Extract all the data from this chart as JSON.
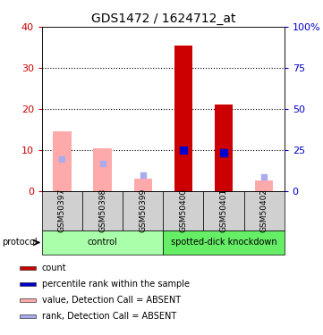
{
  "title": "GDS1472 / 1624712_at",
  "samples": [
    "GSM50397",
    "GSM50398",
    "GSM50399",
    "GSM50400",
    "GSM50401",
    "GSM50402"
  ],
  "bar_values_absent": [
    14.5,
    10.5,
    3.0,
    null,
    null,
    2.5
  ],
  "bar_values_present": [
    null,
    null,
    null,
    35.5,
    21.0,
    null
  ],
  "rank_values_absent": [
    19.5,
    17.0,
    9.7,
    null,
    null,
    8.5
  ],
  "rank_values_present": [
    null,
    null,
    null,
    24.8,
    23.5,
    null
  ],
  "ylim_left": [
    0,
    40
  ],
  "ylim_right": [
    0,
    100
  ],
  "yticks_left": [
    0,
    10,
    20,
    30,
    40
  ],
  "ytick_labels_left": [
    "0",
    "10",
    "20",
    "30",
    "40"
  ],
  "yticks_right": [
    0,
    25,
    50,
    75,
    100
  ],
  "ytick_labels_right": [
    "0",
    "25",
    "50",
    "75",
    "100%"
  ],
  "groups": [
    {
      "label": "control",
      "indices": [
        0,
        1,
        2
      ],
      "color": "#aaffaa"
    },
    {
      "label": "spotted-dick knockdown",
      "indices": [
        3,
        4,
        5
      ],
      "color": "#66ee66"
    }
  ],
  "bar_color_absent": "#ffaaaa",
  "bar_color_present": "#cc0000",
  "rank_color_absent": "#aaaaee",
  "rank_color_present": "#0000cc",
  "bar_width": 0.45,
  "protocol_label": "protocol",
  "background_plot": "#ffffff",
  "tick_label_color_left": "#cc0000",
  "tick_label_color_right": "#0000cc",
  "legend_items": [
    {
      "label": "count",
      "color": "#cc0000"
    },
    {
      "label": "percentile rank within the sample",
      "color": "#0000cc"
    },
    {
      "label": "value, Detection Call = ABSENT",
      "color": "#ffaaaa"
    },
    {
      "label": "rank, Detection Call = ABSENT",
      "color": "#aaaaee"
    }
  ]
}
